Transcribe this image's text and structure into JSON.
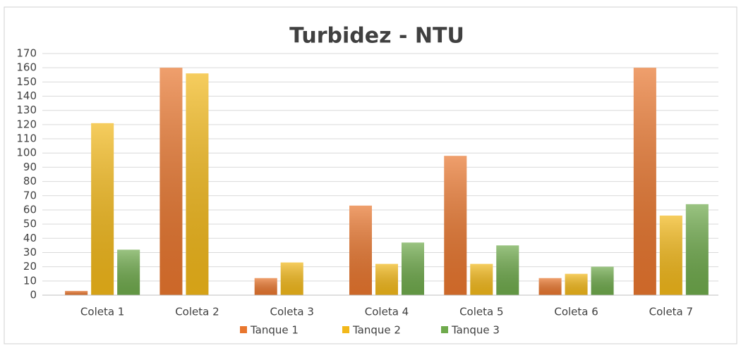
{
  "chart_data": {
    "type": "bar",
    "title": "Turbidez - NTU",
    "categories": [
      "Coleta 1",
      "Coleta 2",
      "Coleta 3",
      "Coleta 4",
      "Coleta 5",
      "Coleta 6",
      "Coleta 7"
    ],
    "series": [
      {
        "name": "Tanque 1",
        "color": "#e8762e",
        "values": [
          3,
          160,
          12,
          63,
          98,
          12,
          160
        ]
      },
      {
        "name": "Tanque 2",
        "color": "#f2b81a",
        "values": [
          121,
          156,
          23,
          22,
          22,
          15,
          56
        ]
      },
      {
        "name": "Tanque 3",
        "color": "#6faa4c",
        "values": [
          32,
          null,
          null,
          37,
          35,
          20,
          64
        ]
      }
    ],
    "ylim": [
      0,
      170
    ],
    "yticks": [
      0,
      10,
      20,
      30,
      40,
      50,
      60,
      70,
      80,
      90,
      100,
      110,
      120,
      130,
      140,
      150,
      160,
      170
    ],
    "grid": true,
    "legend": "bottom"
  }
}
